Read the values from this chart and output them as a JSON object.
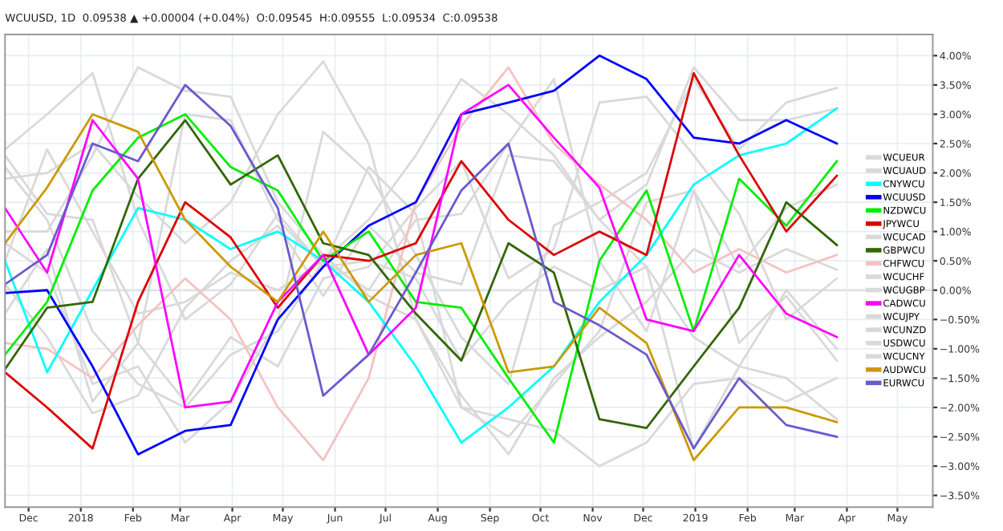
{
  "chart_data": {
    "type": "line",
    "title": "WCUUSD, 1D  0.09538 ▲ +0.00004 (+0.04%)  O:0.09545  H:0.09555  L:0.09534  C:0.09538",
    "x": [
      "2017-11-17",
      "2017-12-12",
      "2018-01-08",
      "2018-02-04",
      "2018-03-04",
      "2018-03-31",
      "2018-04-28",
      "2018-05-25",
      "2018-06-21",
      "2018-07-19",
      "2018-08-15",
      "2018-09-12",
      "2018-10-09",
      "2018-11-05",
      "2018-12-03",
      "2018-12-31",
      "2019-01-27",
      "2019-02-24",
      "2019-03-26"
    ],
    "xlim": [
      "2017-11-17",
      "2019-05-22"
    ],
    "xticks": [
      {
        "value": "2017-12-01",
        "label": "Dec"
      },
      {
        "value": "2018-01-01",
        "label": "2018"
      },
      {
        "value": "2018-02-01",
        "label": "Feb"
      },
      {
        "value": "2018-03-01",
        "label": "Mar"
      },
      {
        "value": "2018-04-01",
        "label": "Apr"
      },
      {
        "value": "2018-05-01",
        "label": "May"
      },
      {
        "value": "2018-06-01",
        "label": "Jun"
      },
      {
        "value": "2018-07-01",
        "label": "Jul"
      },
      {
        "value": "2018-08-01",
        "label": "Aug"
      },
      {
        "value": "2018-09-01",
        "label": "Sep"
      },
      {
        "value": "2018-10-01",
        "label": "Oct"
      },
      {
        "value": "2018-11-01",
        "label": "Nov"
      },
      {
        "value": "2018-12-01",
        "label": "Dec"
      },
      {
        "value": "2019-01-01",
        "label": "2019"
      },
      {
        "value": "2019-02-01",
        "label": "Feb"
      },
      {
        "value": "2019-03-01",
        "label": "Mar"
      },
      {
        "value": "2019-04-01",
        "label": "Apr"
      },
      {
        "value": "2019-05-01",
        "label": "May"
      }
    ],
    "ylim": [
      -3.7,
      4.36
    ],
    "yticks": [
      {
        "value": 4,
        "label": "4.00%"
      },
      {
        "value": 3.5,
        "label": "3.50%"
      },
      {
        "value": 3,
        "label": "3.00%"
      },
      {
        "value": 2.5,
        "label": "2.50%"
      },
      {
        "value": 2,
        "label": "2.00%"
      },
      {
        "value": 1.5,
        "label": "1.50%"
      },
      {
        "value": 1,
        "label": "1.00%"
      },
      {
        "value": 0.5,
        "label": "0.50%"
      },
      {
        "value": 0,
        "label": "0.00%"
      },
      {
        "value": -0.5,
        "label": "−0.50%"
      },
      {
        "value": -1,
        "label": "−1.00%"
      },
      {
        "value": -1.5,
        "label": "−1.50%"
      },
      {
        "value": -2,
        "label": "−2.00%"
      },
      {
        "value": -2.5,
        "label": "−2.50%"
      },
      {
        "value": -3,
        "label": "−3.00%"
      },
      {
        "value": -3.5,
        "label": "−3.50%"
      }
    ],
    "grid": true,
    "legend": "right",
    "line_style": "solid",
    "ref_lines": [
      {
        "axis": "y",
        "value": 0,
        "color": "#b0b0b0"
      }
    ],
    "series": [
      {
        "name": "WCUEUR",
        "color": "#d9d9d9",
        "values": [
          0.8,
          0.3,
          -1.6,
          -1.3,
          -2.6,
          -1.9,
          -0.5,
          2.7,
          2.0,
          0.6,
          -0.8,
          -1.6,
          1.1,
          1.5,
          2.0,
          3.6,
          2.4,
          3.2,
          3.45
        ]
      },
      {
        "name": "WCUAUD",
        "color": "#d9d9d9",
        "values": [
          0.1,
          -0.8,
          -2.1,
          -1.8,
          -0.3,
          0.5,
          1.1,
          -0.1,
          1.1,
          0.3,
          0.1,
          2.3,
          2.2,
          1.2,
          1.8,
          3.8,
          2.9,
          2.9,
          3.1
        ]
      },
      {
        "name": "WCUCAD",
        "color": "#d9d9d9",
        "values": [
          -0.4,
          0.7,
          -1.9,
          -0.9,
          3.0,
          2.9,
          1.2,
          0.4,
          2.1,
          1.3,
          -2.0,
          -2.5,
          -1.6,
          -0.7,
          1.5,
          1.7,
          0.4,
          1.4,
          1.8
        ]
      },
      {
        "name": "WCUCHF",
        "color": "#d9d9d9",
        "values": [
          1.9,
          2.0,
          2.5,
          1.6,
          0.8,
          1.5,
          3.0,
          3.9,
          2.5,
          -0.5,
          -1.8,
          -2.8,
          -1.5,
          -0.8,
          -0.2,
          0.7,
          0.3,
          0.7,
          0.35
        ]
      },
      {
        "name": "WCUGBP",
        "color": "#d9d9d9",
        "values": [
          2.3,
          1.3,
          1.2,
          -0.9,
          -1.9,
          -0.8,
          -1.3,
          0.2,
          0.4,
          1.4,
          2.2,
          0.2,
          0.7,
          3.2,
          3.3,
          2.3,
          1.3,
          -0.5,
          0.2
        ]
      },
      {
        "name": "WCUJPY",
        "color": "#d9d9d9",
        "values": [
          2.4,
          3.0,
          3.7,
          1.2,
          -0.5,
          0.1,
          1.3,
          0.4,
          0.5,
          0.2,
          -1.2,
          -0.2,
          0.4,
          0.0,
          0.4,
          -2.7,
          -1.3,
          0.0,
          -1.0
        ]
      },
      {
        "name": "WCUNZD",
        "color": "#d9d9d9",
        "values": [
          2.1,
          1.2,
          -0.7,
          -1.6,
          -2.0,
          -1.1,
          -0.7,
          0.5,
          0.0,
          1.2,
          1.3,
          2.5,
          3.6,
          0.5,
          -0.7,
          1.7,
          -0.9,
          -0.1,
          -1.2
        ]
      },
      {
        "name": "USDWCU",
        "color": "#d9d9d9",
        "values": [
          1.0,
          1.0,
          2.3,
          3.8,
          3.4,
          3.3,
          1.5,
          0.6,
          -0.1,
          -0.5,
          -2.0,
          -2.2,
          -2.4,
          -3.0,
          -2.6,
          -1.6,
          -1.5,
          -1.9,
          -1.5
        ]
      },
      {
        "name": "WCUCNY",
        "color": "#d9d9d9",
        "values": [
          0.5,
          2.4,
          1.0,
          -0.4,
          -0.2,
          0.3,
          0.0,
          0.5,
          1.2,
          2.3,
          3.6,
          3.0,
          2.3,
          1.2,
          0.4,
          -0.8,
          -1.3,
          -1.5,
          -2.2
        ]
      },
      {
        "name": "CHFWCU",
        "color": "#f4c2c2",
        "values": [
          -0.9,
          -1.0,
          -1.5,
          -0.6,
          0.2,
          -0.5,
          -2.0,
          -2.9,
          -1.5,
          1.5,
          2.8,
          3.8,
          2.5,
          1.8,
          1.2,
          0.3,
          0.7,
          0.3,
          0.6
        ]
      },
      {
        "name": "CNYWCU",
        "color": "#00ffff",
        "values": [
          0.5,
          -1.4,
          0.0,
          1.4,
          1.2,
          0.7,
          1.0,
          0.5,
          -0.2,
          -1.3,
          -2.6,
          -2.0,
          -1.3,
          -0.2,
          0.6,
          1.8,
          2.3,
          2.5,
          3.1
        ]
      },
      {
        "name": "WCUUSD",
        "color": "#0000ff",
        "values": [
          -0.05,
          0.0,
          -1.3,
          -2.8,
          -2.4,
          -2.3,
          -0.5,
          0.4,
          1.1,
          1.5,
          3.0,
          3.2,
          3.4,
          4.0,
          3.6,
          2.6,
          2.5,
          2.9,
          2.5
        ]
      },
      {
        "name": "NZDWCU",
        "color": "#00ee00",
        "values": [
          -1.1,
          -0.2,
          1.7,
          2.6,
          3.0,
          2.1,
          1.7,
          0.5,
          1.0,
          -0.2,
          -0.3,
          -1.5,
          -2.6,
          0.5,
          1.7,
          -0.7,
          1.9,
          1.1,
          2.2
        ]
      },
      {
        "name": "JPYWCU",
        "color": "#dd0000",
        "values": [
          -1.4,
          -2.0,
          -2.7,
          -0.2,
          1.5,
          0.9,
          -0.3,
          0.6,
          0.5,
          0.8,
          2.2,
          1.2,
          0.6,
          1.0,
          0.6,
          3.7,
          2.3,
          1.0,
          1.95
        ]
      },
      {
        "name": "GBPWCU",
        "color": "#336600",
        "values": [
          -1.35,
          -0.3,
          -0.2,
          1.9,
          2.9,
          1.8,
          2.3,
          0.8,
          0.6,
          -0.4,
          -1.2,
          0.8,
          0.3,
          -2.2,
          -2.35,
          -1.3,
          -0.3,
          1.5,
          0.77
        ]
      },
      {
        "name": "CADWCU",
        "color": "#ff00ff",
        "values": [
          1.4,
          0.3,
          2.9,
          1.9,
          -2.0,
          -1.9,
          -0.2,
          0.6,
          -1.1,
          -0.3,
          3.0,
          3.5,
          2.6,
          1.75,
          -0.5,
          -0.7,
          0.6,
          -0.4,
          -0.8
        ]
      },
      {
        "name": "AUDWCU",
        "color": "#cc9900",
        "values": [
          0.8,
          1.75,
          3.0,
          2.7,
          1.2,
          0.4,
          -0.2,
          1.0,
          -0.2,
          0.6,
          0.8,
          -1.4,
          -1.3,
          -0.3,
          -0.9,
          -2.9,
          -2.0,
          -2.0,
          -2.25
        ]
      },
      {
        "name": "EURWCU",
        "color": "#6a5acd",
        "values": [
          0.1,
          0.6,
          2.5,
          2.2,
          3.5,
          2.8,
          1.4,
          -1.8,
          -1.1,
          0.3,
          1.7,
          2.5,
          -0.2,
          -0.6,
          -1.1,
          -2.7,
          -1.5,
          -2.3,
          -2.5
        ]
      }
    ]
  }
}
